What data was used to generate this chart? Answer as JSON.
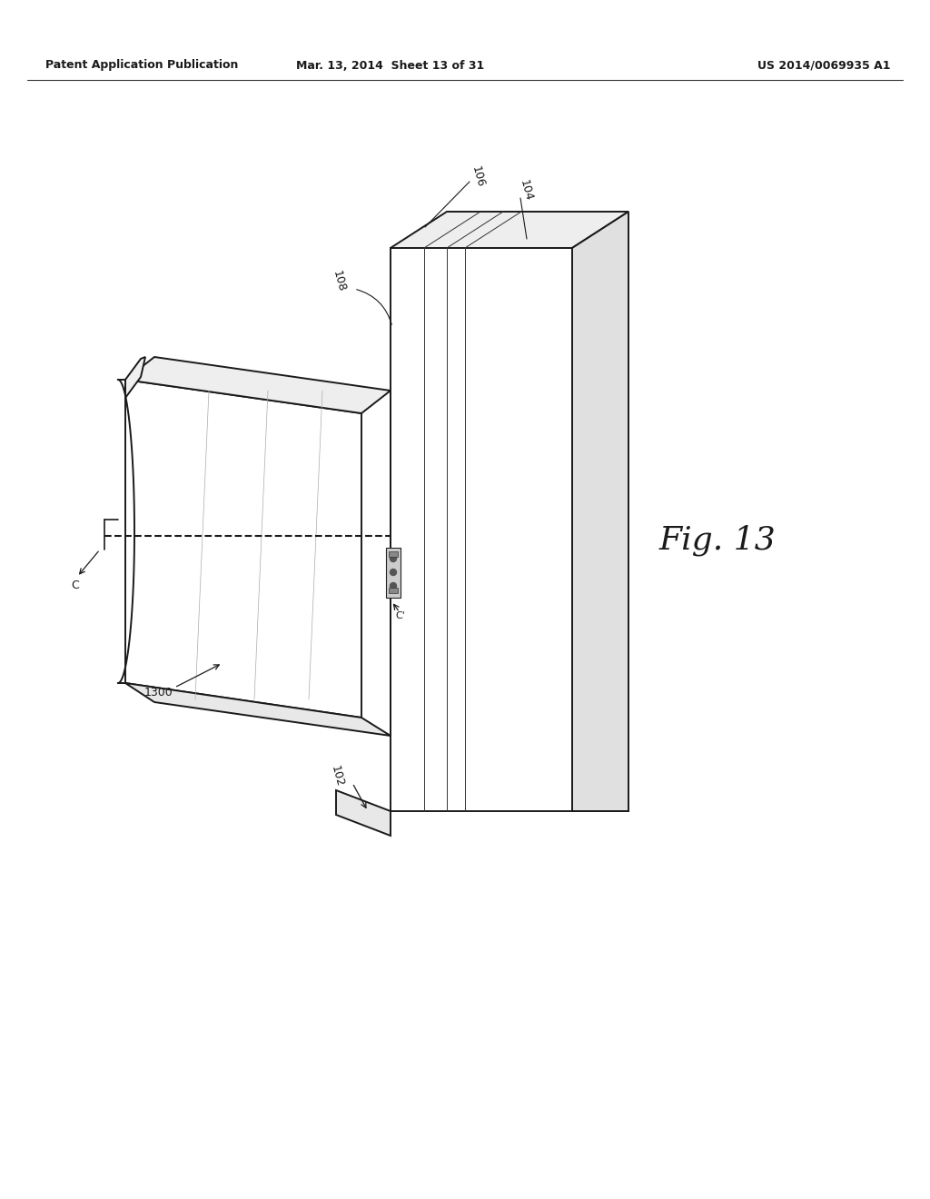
{
  "header_left": "Patent Application Publication",
  "header_mid": "Mar. 13, 2014  Sheet 13 of 31",
  "header_right": "US 2014/0069935 A1",
  "fig_label": "Fig. 13",
  "bg_color": "#ffffff",
  "line_color": "#1a1a1a",
  "lw_main": 1.4,
  "lw_thin": 0.7,
  "lw_faint": 0.5,
  "label_fontsize": 9,
  "fig_label_fontsize": 26,
  "header_fontsize": 9
}
